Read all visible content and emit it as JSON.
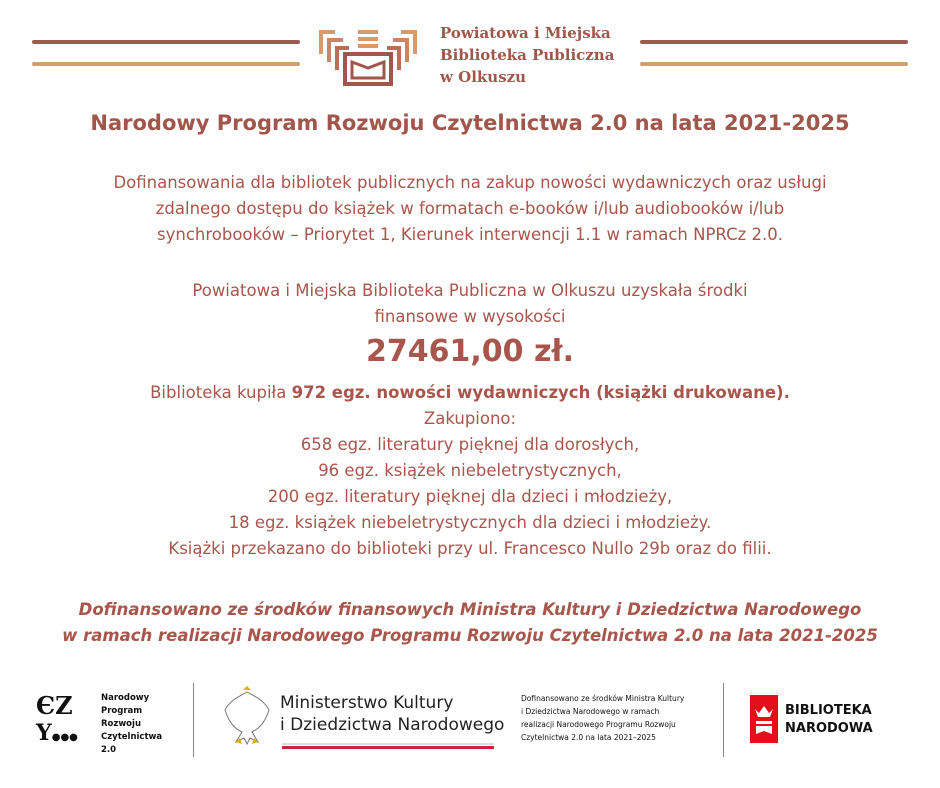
{
  "header": {
    "library_name": [
      "Powiatowa i Miejska",
      "Biblioteka Publiczna",
      "w Olkuszu"
    ],
    "colors": {
      "primary": "#a0564a",
      "accent": "#d3a06e"
    }
  },
  "title": "Narodowy Program Rozwoju Czytelnictwa 2.0 na lata 2021-2025",
  "intro": [
    "Dofinansowania dla bibliotek publicznych na zakup nowości wydawniczych oraz usługi",
    "zdalnego dostępu do książek w formatach e-booków i/lub audiobooków i/lub",
    "synchrobooków – Priorytet 1, Kierunek interwencji 1.1 w ramach NPRCz 2.0."
  ],
  "funding": [
    "Powiatowa i Miejska Biblioteka Publiczna w Olkuszu uzyskała środki",
    "finansowe w wysokości"
  ],
  "amount": "27461,00 zł.",
  "purchase": {
    "prefix": "Biblioteka kupiła ",
    "bold": "972 egz. nowości wydawniczych (książki drukowane).",
    "lines": [
      "Zakupiono:",
      "658 egz. literatury pięknej dla dorosłych,",
      "96 egz. książek niebeletrystycznych,",
      "200 egz. literatury pięknej dla dzieci i młodzieży,",
      "18 egz. książek niebeletrystycznych dla dzieci i młodzieży.",
      "Książki przekazano do biblioteki przy ul. Francesco Nullo 29b oraz do filii."
    ]
  },
  "footnote": [
    "Dofinansowano ze środków finansowych Ministra Kultury i Dziedzictwa Narodowego",
    "w ramach realizacji Narodowego Programu Rozwoju Czytelnictwa 2.0 na lata 2021-2025"
  ],
  "footer": {
    "nprcz": [
      "Narodowy",
      "Program",
      "Rozwoju",
      "Czytelnictwa",
      "2.0"
    ],
    "ministry": [
      "Ministerstwo Kultury",
      "i Dziedzictwa Narodowego"
    ],
    "note": [
      "Dofinansowano ze środków Ministra Kultury",
      "i Dziedzictwa Narodowego w ramach",
      "realizacji Narodowego Programu Rozwoju",
      "Czytelnictwa 2.0 na lata 2021–2025"
    ],
    "bn": [
      "BIBLIOTEKA",
      "NARODOWA"
    ]
  }
}
